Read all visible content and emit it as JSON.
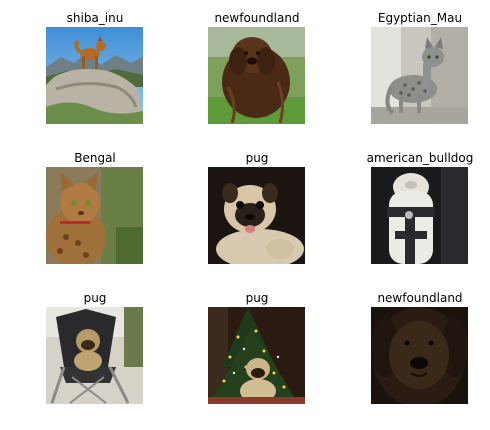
{
  "grid": {
    "items": [
      {
        "label": "shiba_inu"
      },
      {
        "label": "newfoundland"
      },
      {
        "label": "Egyptian_Mau"
      },
      {
        "label": "Bengal"
      },
      {
        "label": "pug"
      },
      {
        "label": "american_bulldog"
      },
      {
        "label": "pug"
      },
      {
        "label": "pug"
      },
      {
        "label": "newfoundland"
      }
    ]
  }
}
